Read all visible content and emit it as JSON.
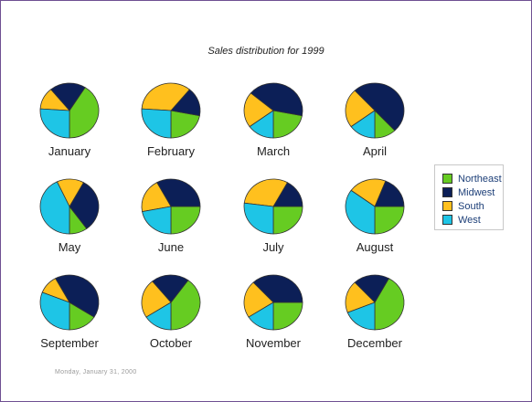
{
  "chart_data": {
    "type": "pie",
    "title": "Sales distribution for 1999",
    "series_names": [
      "Northeast",
      "Midwest",
      "South",
      "West"
    ],
    "colors": [
      "#66cc22",
      "#0c1f57",
      "#ffc01e",
      "#1ec5e6"
    ],
    "charts": [
      {
        "label": "January",
        "values": [
          41,
          20,
          13,
          26
        ]
      },
      {
        "label": "February",
        "values": [
          22,
          17,
          35,
          26
        ]
      },
      {
        "label": "March",
        "values": [
          22,
          42,
          21,
          15
        ]
      },
      {
        "label": "April",
        "values": [
          12,
          50,
          23,
          15
        ]
      },
      {
        "label": "May",
        "values": [
          10,
          32,
          15,
          43
        ]
      },
      {
        "label": "June",
        "values": [
          25,
          33,
          20,
          22
        ]
      },
      {
        "label": "July",
        "values": [
          25,
          17,
          31,
          27
        ]
      },
      {
        "label": "August",
        "values": [
          25,
          19,
          21,
          35
        ]
      },
      {
        "label": "September",
        "values": [
          16,
          42,
          11,
          31
        ]
      },
      {
        "label": "October",
        "values": [
          40,
          21,
          23,
          16
        ]
      },
      {
        "label": "November",
        "values": [
          25,
          37,
          22,
          16
        ]
      },
      {
        "label": "December",
        "values": [
          42,
          20,
          19,
          19
        ]
      }
    ],
    "legend_position": "right"
  },
  "footer": {
    "date": "Monday, January 31, 2000"
  }
}
